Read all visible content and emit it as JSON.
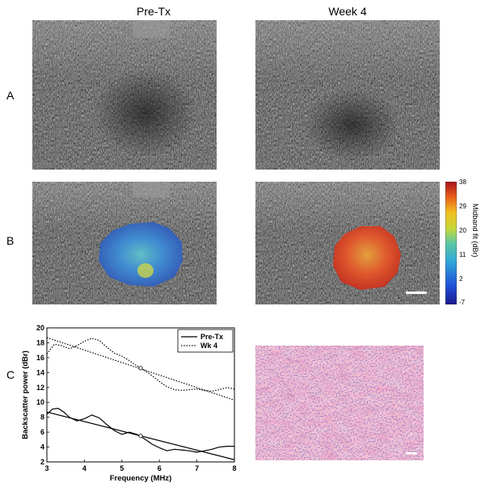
{
  "figure": {
    "col_titles": [
      "Pre-Tx",
      "Week 4"
    ],
    "row_labels": [
      "A",
      "B",
      "C"
    ],
    "colorbar": {
      "title": "Midband fit (dBr)",
      "ticks": [
        "38",
        "29",
        "20",
        "11",
        "2",
        "-7"
      ]
    }
  },
  "chart_data": {
    "type": "line",
    "xlabel": "Frequency (MHz)",
    "ylabel": "Backscatter power (dBr)",
    "xlim": [
      3,
      8
    ],
    "ylim": [
      2,
      20
    ],
    "xticks": [
      3,
      4,
      5,
      6,
      7,
      8
    ],
    "yticks": [
      2,
      4,
      6,
      8,
      10,
      12,
      14,
      16,
      18,
      20
    ],
    "legend_position": "top-right",
    "series": [
      {
        "name": "Pre-Tx",
        "style": "solid",
        "spectrum": {
          "x": [
            3.0,
            3.15,
            3.3,
            3.45,
            3.6,
            3.8,
            4.0,
            4.2,
            4.4,
            4.6,
            4.8,
            5.0,
            5.2,
            5.4,
            5.6,
            5.8,
            6.0,
            6.2,
            6.4,
            6.6,
            6.8,
            7.0,
            7.2,
            7.4,
            7.6,
            7.8,
            8.0
          ],
          "y": [
            8.4,
            9.1,
            9.2,
            8.7,
            8.0,
            7.5,
            7.8,
            8.3,
            7.9,
            7.0,
            6.2,
            5.7,
            6.0,
            5.7,
            5.1,
            4.4,
            3.9,
            3.5,
            3.7,
            3.6,
            3.5,
            3.3,
            3.5,
            3.7,
            4.0,
            4.1,
            4.1
          ]
        },
        "fit": {
          "x": [
            3,
            8
          ],
          "y": [
            8.7,
            2.3
          ]
        },
        "midband_marker": {
          "x": 5.5,
          "y": 5.5
        }
      },
      {
        "name": "Wk 4",
        "style": "dotted",
        "spectrum": {
          "x": [
            3.0,
            3.2,
            3.4,
            3.6,
            3.8,
            4.0,
            4.2,
            4.4,
            4.6,
            4.8,
            5.0,
            5.2,
            5.4,
            5.6,
            5.8,
            6.0,
            6.2,
            6.4,
            6.6,
            6.8,
            7.0,
            7.2,
            7.4,
            7.6,
            7.8,
            8.0
          ],
          "y": [
            16.5,
            17.8,
            17.6,
            17.2,
            17.6,
            18.2,
            18.6,
            18.3,
            17.4,
            16.6,
            16.2,
            15.6,
            14.9,
            14.3,
            13.6,
            12.8,
            12.1,
            11.7,
            11.6,
            11.7,
            11.8,
            11.6,
            11.5,
            11.7,
            12.0,
            11.8
          ]
        },
        "fit": {
          "x": [
            3,
            8
          ],
          "y": [
            18.7,
            10.3
          ]
        },
        "midband_marker": {
          "x": 5.5,
          "y": 14.6
        }
      }
    ]
  }
}
